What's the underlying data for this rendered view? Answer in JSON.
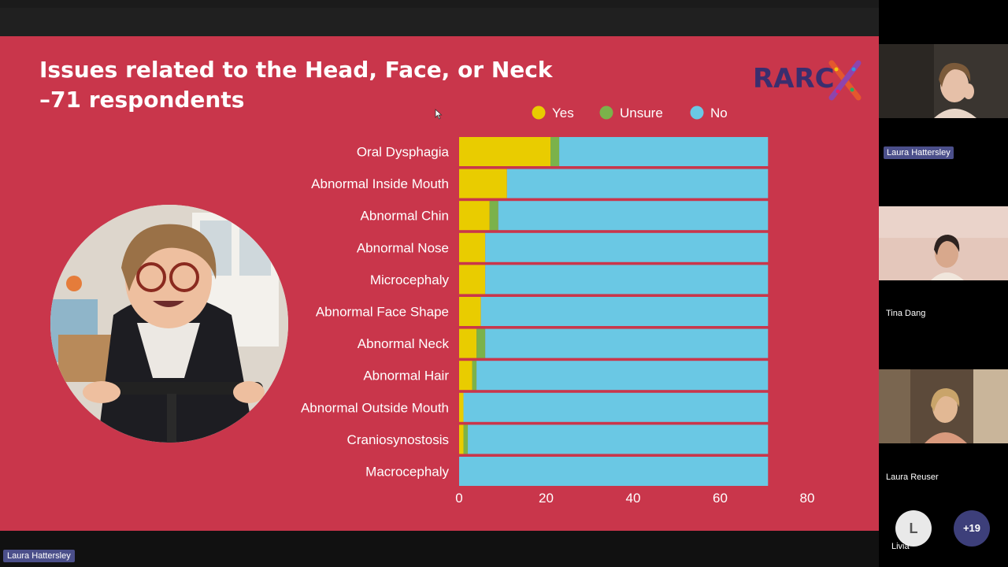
{
  "slide": {
    "title_line1": "Issues related to the Head, Face, or Neck",
    "title_line2": "–71 respondents",
    "logo_text": "RARC",
    "logo_x": "X"
  },
  "chart_data": {
    "type": "bar",
    "orientation": "horizontal",
    "stacked": true,
    "categories": [
      "Oral Dysphagia",
      "Abnormal Inside Mouth",
      "Abnormal Chin",
      "Abnormal Nose",
      "Microcephaly",
      "Abnormal Face Shape",
      "Abnormal Neck",
      "Abnormal Hair",
      "Abnormal Outside Mouth",
      "Craniosynostosis",
      "Macrocephaly"
    ],
    "series": [
      {
        "name": "Yes",
        "color": "#e9cc00",
        "values": [
          21,
          11,
          7,
          6,
          6,
          5,
          4,
          3,
          1,
          1,
          0
        ]
      },
      {
        "name": "Unsure",
        "color": "#7bb24a",
        "values": [
          2,
          0,
          2,
          0,
          0,
          0,
          2,
          1,
          0,
          1,
          0
        ]
      },
      {
        "name": "No",
        "color": "#6ac8e4",
        "values": [
          48,
          60,
          62,
          65,
          65,
          66,
          65,
          67,
          70,
          69,
          71
        ]
      }
    ],
    "xlim": [
      0,
      80
    ],
    "xticks": [
      "0",
      "20",
      "40",
      "60",
      "80"
    ],
    "legend_position": "top"
  },
  "participants": [
    {
      "name": "Laura Hattersley"
    },
    {
      "name": "Tina Dang"
    },
    {
      "name": "Laura Reuser"
    }
  ],
  "avatar": {
    "initial": "L",
    "name": "Livia"
  },
  "more_count": "+19",
  "speaker_tag": "Laura Hattersley"
}
